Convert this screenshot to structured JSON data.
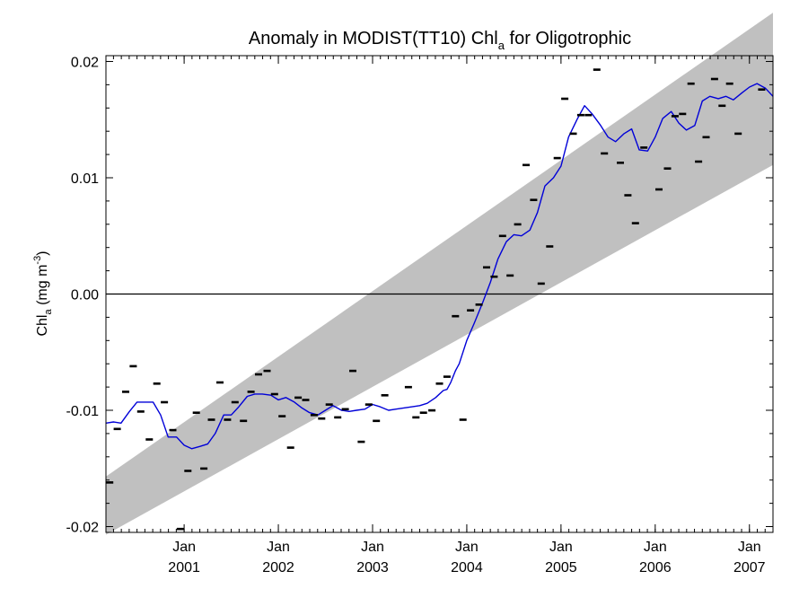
{
  "chart_data": {
    "type": "scatter",
    "title": {
      "main": "Anomaly in MODIST(TT10) Chl",
      "sub": "a",
      "tail": " for Oligotrophic"
    },
    "ylabel": {
      "main": "Chl",
      "sub": "a",
      "unit_pre": " (mg m",
      "sup": "-3",
      "unit_post": ")"
    },
    "xlabel": "",
    "x_range": [
      2000.17,
      2007.25
    ],
    "ylim": [
      -0.0205,
      0.0205
    ],
    "y_ticks": [
      {
        "v": 0.02,
        "label": "0.02"
      },
      {
        "v": 0.01,
        "label": "0.01"
      },
      {
        "v": 0.0,
        "label": "0.00"
      },
      {
        "v": -0.01,
        "label": "-0.01"
      },
      {
        "v": -0.02,
        "label": "-0.02"
      }
    ],
    "x_ticks": [
      {
        "v": 2001.0,
        "month": "Jan",
        "year": "2001"
      },
      {
        "v": 2002.0,
        "month": "Jan",
        "year": "2002"
      },
      {
        "v": 2003.0,
        "month": "Jan",
        "year": "2003"
      },
      {
        "v": 2004.0,
        "month": "Jan",
        "year": "2004"
      },
      {
        "v": 2005.0,
        "month": "Jan",
        "year": "2005"
      },
      {
        "v": 2006.0,
        "month": "Jan",
        "year": "2006"
      },
      {
        "v": 2007.0,
        "month": "Jan",
        "year": "2007"
      }
    ],
    "zero_line": 0.0,
    "trend_band": {
      "color": "#c0c0c0",
      "lower": [
        [
          2000.17,
          -0.0207
        ],
        [
          2007.25,
          0.0111
        ]
      ],
      "upper": [
        [
          2000.17,
          -0.0157
        ],
        [
          2007.25,
          0.0242
        ]
      ]
    },
    "monthly_points": [
      [
        2000.21,
        -0.0162
      ],
      [
        2000.29,
        -0.0116
      ],
      [
        2000.38,
        -0.0084
      ],
      [
        2000.46,
        -0.0062
      ],
      [
        2000.54,
        -0.0101
      ],
      [
        2000.63,
        -0.0125
      ],
      [
        2000.71,
        -0.0077
      ],
      [
        2000.79,
        -0.0093
      ],
      [
        2000.88,
        -0.0117
      ],
      [
        2000.96,
        -0.0202
      ],
      [
        2001.04,
        -0.0152
      ],
      [
        2001.13,
        -0.0102
      ],
      [
        2001.21,
        -0.015
      ],
      [
        2001.29,
        -0.0108
      ],
      [
        2001.38,
        -0.0076
      ],
      [
        2001.46,
        -0.0108
      ],
      [
        2001.54,
        -0.0093
      ],
      [
        2001.63,
        -0.0109
      ],
      [
        2001.71,
        -0.0084
      ],
      [
        2001.79,
        -0.0069
      ],
      [
        2001.88,
        -0.0066
      ],
      [
        2001.96,
        -0.0086
      ],
      [
        2002.04,
        -0.0105
      ],
      [
        2002.13,
        -0.0132
      ],
      [
        2002.21,
        -0.0089
      ],
      [
        2002.29,
        -0.0091
      ],
      [
        2002.38,
        -0.0104
      ],
      [
        2002.46,
        -0.0107
      ],
      [
        2002.54,
        -0.0095
      ],
      [
        2002.63,
        -0.0106
      ],
      [
        2002.71,
        -0.0099
      ],
      [
        2002.79,
        -0.0066
      ],
      [
        2002.88,
        -0.0127
      ],
      [
        2002.96,
        -0.0095
      ],
      [
        2003.04,
        -0.0109
      ],
      [
        2003.13,
        -0.0087
      ],
      [
        2003.38,
        -0.008
      ],
      [
        2003.46,
        -0.0106
      ],
      [
        2003.54,
        -0.0102
      ],
      [
        2003.63,
        -0.01
      ],
      [
        2003.71,
        -0.0077
      ],
      [
        2003.79,
        -0.0071
      ],
      [
        2003.88,
        -0.0019
      ],
      [
        2003.96,
        -0.0108
      ],
      [
        2004.04,
        -0.0014
      ],
      [
        2004.13,
        -0.0009
      ],
      [
        2004.21,
        0.0023
      ],
      [
        2004.29,
        0.0015
      ],
      [
        2004.38,
        0.005
      ],
      [
        2004.46,
        0.0016
      ],
      [
        2004.54,
        0.006
      ],
      [
        2004.63,
        0.0111
      ],
      [
        2004.71,
        0.0081
      ],
      [
        2004.79,
        0.0009
      ],
      [
        2004.88,
        0.0041
      ],
      [
        2004.96,
        0.0117
      ],
      [
        2005.04,
        0.0168
      ],
      [
        2005.13,
        0.0138
      ],
      [
        2005.21,
        0.0154
      ],
      [
        2005.29,
        0.0154
      ],
      [
        2005.38,
        0.0193
      ],
      [
        2005.46,
        0.0121
      ],
      [
        2005.63,
        0.0113
      ],
      [
        2005.71,
        0.0085
      ],
      [
        2005.79,
        0.0061
      ],
      [
        2005.88,
        0.0126
      ],
      [
        2006.04,
        0.009
      ],
      [
        2006.13,
        0.0108
      ],
      [
        2006.21,
        0.0153
      ],
      [
        2006.29,
        0.0155
      ],
      [
        2006.38,
        0.0181
      ],
      [
        2006.46,
        0.0114
      ],
      [
        2006.54,
        0.0135
      ],
      [
        2006.63,
        0.0185
      ],
      [
        2006.71,
        0.0162
      ],
      [
        2006.79,
        0.0181
      ],
      [
        2006.88,
        0.0138
      ],
      [
        2007.13,
        0.0176
      ]
    ],
    "smoothed_series": {
      "color": "#0000d8",
      "points": [
        [
          2000.17,
          -0.0111
        ],
        [
          2000.25,
          -0.011
        ],
        [
          2000.33,
          -0.0111
        ],
        [
          2000.42,
          -0.0101
        ],
        [
          2000.5,
          -0.0093
        ],
        [
          2000.58,
          -0.0093
        ],
        [
          2000.67,
          -0.0093
        ],
        [
          2000.75,
          -0.0104
        ],
        [
          2000.83,
          -0.0123
        ],
        [
          2000.92,
          -0.0123
        ],
        [
          2001.0,
          -0.013
        ],
        [
          2001.08,
          -0.0133
        ],
        [
          2001.17,
          -0.0131
        ],
        [
          2001.25,
          -0.0129
        ],
        [
          2001.33,
          -0.012
        ],
        [
          2001.42,
          -0.0104
        ],
        [
          2001.5,
          -0.0104
        ],
        [
          2001.58,
          -0.0097
        ],
        [
          2001.67,
          -0.0088
        ],
        [
          2001.75,
          -0.0086
        ],
        [
          2001.83,
          -0.0086
        ],
        [
          2001.92,
          -0.0087
        ],
        [
          2002.0,
          -0.0091
        ],
        [
          2002.08,
          -0.0089
        ],
        [
          2002.17,
          -0.0093
        ],
        [
          2002.25,
          -0.0098
        ],
        [
          2002.33,
          -0.0102
        ],
        [
          2002.42,
          -0.0104
        ],
        [
          2002.5,
          -0.01
        ],
        [
          2002.58,
          -0.0096
        ],
        [
          2002.67,
          -0.01
        ],
        [
          2002.75,
          -0.0101
        ],
        [
          2002.83,
          -0.01
        ],
        [
          2002.92,
          -0.0099
        ],
        [
          2003.0,
          -0.0095
        ],
        [
          2003.08,
          -0.0097
        ],
        [
          2003.17,
          -0.01
        ],
        [
          2003.25,
          -0.0099
        ],
        [
          2003.42,
          -0.0097
        ],
        [
          2003.5,
          -0.0096
        ],
        [
          2003.58,
          -0.0094
        ],
        [
          2003.67,
          -0.0089
        ],
        [
          2003.75,
          -0.0083
        ],
        [
          2003.79,
          -0.0082
        ],
        [
          2003.83,
          -0.0076
        ],
        [
          2003.88,
          -0.0066
        ],
        [
          2003.92,
          -0.006
        ],
        [
          2004.0,
          -0.004
        ],
        [
          2004.08,
          -0.0025
        ],
        [
          2004.17,
          -0.0007
        ],
        [
          2004.25,
          0.001
        ],
        [
          2004.33,
          0.003
        ],
        [
          2004.42,
          0.0045
        ],
        [
          2004.5,
          0.0051
        ],
        [
          2004.58,
          0.005
        ],
        [
          2004.67,
          0.0055
        ],
        [
          2004.75,
          0.007
        ],
        [
          2004.83,
          0.0093
        ],
        [
          2004.92,
          0.01
        ],
        [
          2005.0,
          0.011
        ],
        [
          2005.08,
          0.0135
        ],
        [
          2005.17,
          0.015
        ],
        [
          2005.25,
          0.0162
        ],
        [
          2005.33,
          0.0155
        ],
        [
          2005.42,
          0.0145
        ],
        [
          2005.5,
          0.0135
        ],
        [
          2005.58,
          0.0131
        ],
        [
          2005.67,
          0.0138
        ],
        [
          2005.75,
          0.0142
        ],
        [
          2005.83,
          0.0124
        ],
        [
          2005.92,
          0.0123
        ],
        [
          2006.0,
          0.0135
        ],
        [
          2006.08,
          0.0151
        ],
        [
          2006.17,
          0.0157
        ],
        [
          2006.25,
          0.0147
        ],
        [
          2006.33,
          0.0141
        ],
        [
          2006.42,
          0.0145
        ],
        [
          2006.5,
          0.0166
        ],
        [
          2006.58,
          0.017
        ],
        [
          2006.67,
          0.0168
        ],
        [
          2006.75,
          0.017
        ],
        [
          2006.83,
          0.0167
        ],
        [
          2006.92,
          0.0173
        ],
        [
          2007.0,
          0.0178
        ],
        [
          2007.08,
          0.0181
        ],
        [
          2007.17,
          0.0177
        ],
        [
          2007.25,
          0.017
        ]
      ]
    }
  }
}
